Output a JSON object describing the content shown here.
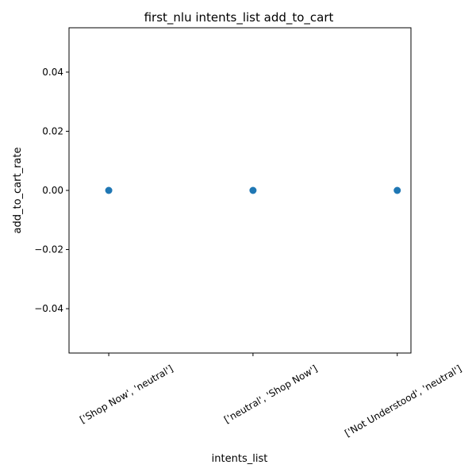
{
  "chart_data": {
    "type": "scatter",
    "title": "first_nlu intents_list add_to_cart",
    "xlabel": "intents_list",
    "ylabel": "add_to_cart_rate",
    "categories": [
      "['Shop Now', 'neutral']",
      "['neutral', 'Shop Now']",
      "['Not Understood', 'neutral']"
    ],
    "series": [
      {
        "values": [
          0.0,
          0.0,
          0.0
        ]
      }
    ],
    "ylim": [
      -0.055,
      0.055
    ],
    "yticks": [
      -0.04,
      -0.02,
      0.0,
      0.02,
      0.04
    ],
    "ytick_labels": [
      "−0.04",
      "−0.02",
      "0.00",
      "0.02",
      "0.04"
    ],
    "grid": false,
    "marker_color": "#1f77b4"
  }
}
